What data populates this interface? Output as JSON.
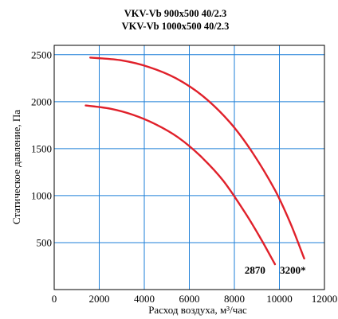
{
  "chart_data": {
    "type": "line",
    "title": [
      "VKV-Vb 900x500 40/2.3",
      "VKV-Vb 1000x500 40/2.3"
    ],
    "xlabel": "Расход воздуха, м³/час",
    "ylabel": "Статическое давление, Па",
    "xlim": [
      0,
      12000
    ],
    "ylim": [
      0,
      2600
    ],
    "x_ticks": [
      0,
      2000,
      4000,
      6000,
      8000,
      10000,
      12000
    ],
    "y_ticks": [
      500,
      1000,
      1500,
      2000,
      2500
    ],
    "x_tick_labels": [
      "0",
      "2000",
      "4000",
      "6000",
      "8000",
      "10000",
      "12000"
    ],
    "y_tick_labels": [
      "500",
      "1000",
      "1500",
      "2000",
      "2500"
    ],
    "grid": true,
    "series": [
      {
        "name": "2870",
        "color": "#e0202a",
        "x": [
          1400,
          2500,
          3500,
          4500,
          5500,
          6500,
          7500,
          8500,
          9200,
          9800
        ],
        "y": [
          1960,
          1925,
          1860,
          1760,
          1620,
          1420,
          1160,
          810,
          530,
          270
        ]
      },
      {
        "name": "3200*",
        "color": "#e0202a",
        "x": [
          1600,
          3000,
          4200,
          5400,
          6600,
          7800,
          8800,
          9800,
          10500,
          11100
        ],
        "y": [
          2470,
          2440,
          2370,
          2250,
          2060,
          1780,
          1460,
          1060,
          700,
          330
        ]
      }
    ]
  }
}
